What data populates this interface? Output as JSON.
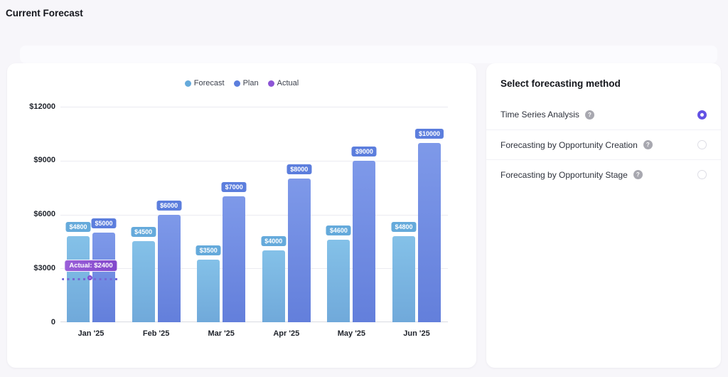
{
  "page": {
    "title": "Current Forecast"
  },
  "chart_data": {
    "type": "bar",
    "title": "",
    "categories": [
      "Jan '25",
      "Feb '25",
      "Mar '25",
      "Apr '25",
      "May '25",
      "Jun '25"
    ],
    "series": [
      {
        "name": "Forecast",
        "color": "#65aadb",
        "values": [
          4800,
          4500,
          3500,
          4000,
          4600,
          4800
        ],
        "labels": [
          "$4800",
          "$4500",
          "$3500",
          "$4000",
          "$4600",
          "$4800"
        ]
      },
      {
        "name": "Plan",
        "color": "#5c7edd",
        "values": [
          5000,
          6000,
          7000,
          8000,
          9000,
          10000
        ],
        "labels": [
          "$5000",
          "$6000",
          "$7000",
          "$8000",
          "$9000",
          "$10000"
        ]
      },
      {
        "name": "Actual",
        "color": "#8d55d6",
        "values": [
          2400,
          null,
          null,
          null,
          null,
          null
        ]
      }
    ],
    "y_ticks": [
      {
        "label": "$12000",
        "value": 12000
      },
      {
        "label": "$9000",
        "value": 9000
      },
      {
        "label": "$6000",
        "value": 6000
      },
      {
        "label": "$3000",
        "value": 3000
      },
      {
        "label": "0",
        "value": 0
      }
    ],
    "ylim": [
      0,
      12000
    ],
    "grid": "horizontal",
    "legend_position": "top-center",
    "tooltip": {
      "label": "Actual: $2400",
      "category": "Jan '25",
      "series": "Actual",
      "value": 2400
    }
  },
  "method_panel": {
    "heading": "Select forecasting method",
    "options": [
      {
        "label": "Time Series Analysis",
        "has_help_icon": true,
        "selected": true
      },
      {
        "label": "Forecasting by Opportunity Creation",
        "has_help_icon": true,
        "selected": false
      },
      {
        "label": "Forecasting by Opportunity Stage",
        "has_help_icon": true,
        "selected": false
      }
    ]
  }
}
